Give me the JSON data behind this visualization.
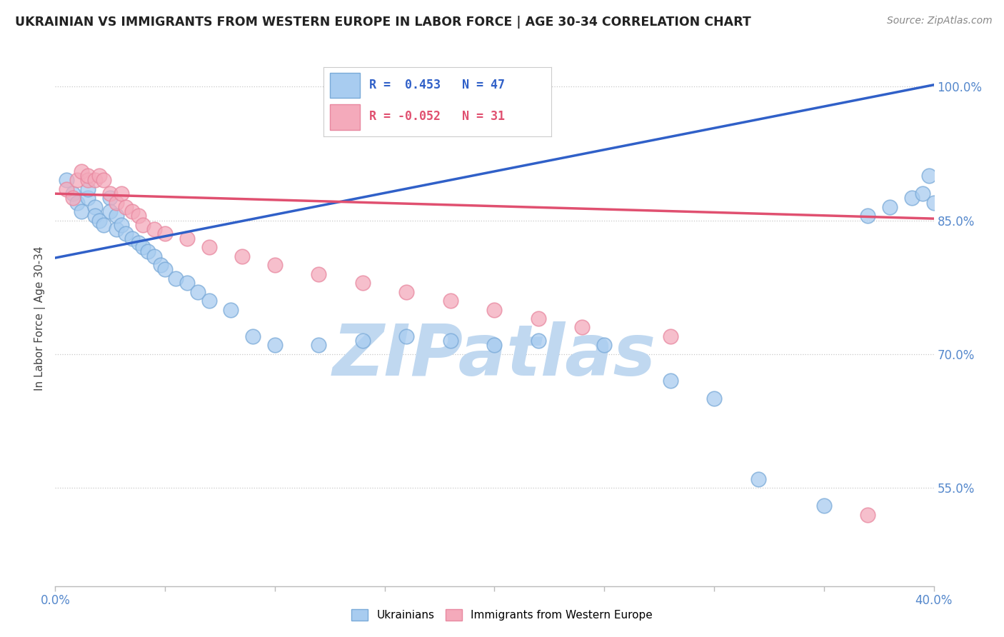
{
  "title": "UKRAINIAN VS IMMIGRANTS FROM WESTERN EUROPE IN LABOR FORCE | AGE 30-34 CORRELATION CHART",
  "source_text": "Source: ZipAtlas.com",
  "ylabel": "In Labor Force | Age 30-34",
  "xlim": [
    0.0,
    0.4
  ],
  "ylim": [
    0.44,
    1.04
  ],
  "ytick_labels": [
    "55.0%",
    "70.0%",
    "85.0%",
    "100.0%"
  ],
  "ytick_values": [
    0.55,
    0.7,
    0.85,
    1.0
  ],
  "xtick_positions": [
    0.0,
    0.05,
    0.1,
    0.15,
    0.2,
    0.25,
    0.3,
    0.35,
    0.4
  ],
  "blue_R": 0.453,
  "blue_N": 47,
  "pink_R": -0.052,
  "pink_N": 31,
  "blue_color": "#A8CCF0",
  "pink_color": "#F4AABB",
  "blue_edge_color": "#7AAAD8",
  "pink_edge_color": "#E888A0",
  "blue_line_color": "#3060C8",
  "pink_line_color": "#E05070",
  "grid_color": "#C8C8C8",
  "watermark_color_zip": "#C0D8F0",
  "watermark_color_atlas": "#A0C0E8",
  "watermark_text": "ZIPatlas",
  "background_color": "#FFFFFF",
  "blue_trendline_x": [
    0.0,
    0.4
  ],
  "blue_trendline_y": [
    0.808,
    1.002
  ],
  "pink_trendline_x": [
    0.0,
    0.4
  ],
  "pink_trendline_y": [
    0.88,
    0.852
  ],
  "blue_scatter_x": [
    0.005,
    0.008,
    0.01,
    0.012,
    0.015,
    0.015,
    0.018,
    0.018,
    0.02,
    0.022,
    0.025,
    0.025,
    0.028,
    0.028,
    0.03,
    0.032,
    0.035,
    0.038,
    0.04,
    0.042,
    0.045,
    0.048,
    0.05,
    0.055,
    0.06,
    0.065,
    0.07,
    0.08,
    0.09,
    0.1,
    0.12,
    0.14,
    0.16,
    0.18,
    0.2,
    0.22,
    0.25,
    0.28,
    0.3,
    0.32,
    0.35,
    0.37,
    0.38,
    0.39,
    0.395,
    0.398,
    0.4
  ],
  "blue_scatter_y": [
    0.895,
    0.88,
    0.87,
    0.86,
    0.875,
    0.885,
    0.865,
    0.855,
    0.85,
    0.845,
    0.875,
    0.86,
    0.84,
    0.855,
    0.845,
    0.835,
    0.83,
    0.825,
    0.82,
    0.815,
    0.81,
    0.8,
    0.795,
    0.785,
    0.78,
    0.77,
    0.76,
    0.75,
    0.72,
    0.71,
    0.71,
    0.715,
    0.72,
    0.715,
    0.71,
    0.715,
    0.71,
    0.67,
    0.65,
    0.56,
    0.53,
    0.855,
    0.865,
    0.875,
    0.88,
    0.9,
    0.87
  ],
  "pink_scatter_x": [
    0.005,
    0.008,
    0.01,
    0.012,
    0.015,
    0.015,
    0.018,
    0.02,
    0.022,
    0.025,
    0.028,
    0.03,
    0.032,
    0.035,
    0.038,
    0.04,
    0.045,
    0.05,
    0.06,
    0.07,
    0.085,
    0.1,
    0.12,
    0.14,
    0.16,
    0.18,
    0.2,
    0.22,
    0.24,
    0.28,
    0.37
  ],
  "pink_scatter_y": [
    0.885,
    0.875,
    0.895,
    0.905,
    0.895,
    0.9,
    0.895,
    0.9,
    0.895,
    0.88,
    0.87,
    0.88,
    0.865,
    0.86,
    0.855,
    0.845,
    0.84,
    0.835,
    0.83,
    0.82,
    0.81,
    0.8,
    0.79,
    0.78,
    0.77,
    0.76,
    0.75,
    0.74,
    0.73,
    0.72,
    0.52
  ]
}
